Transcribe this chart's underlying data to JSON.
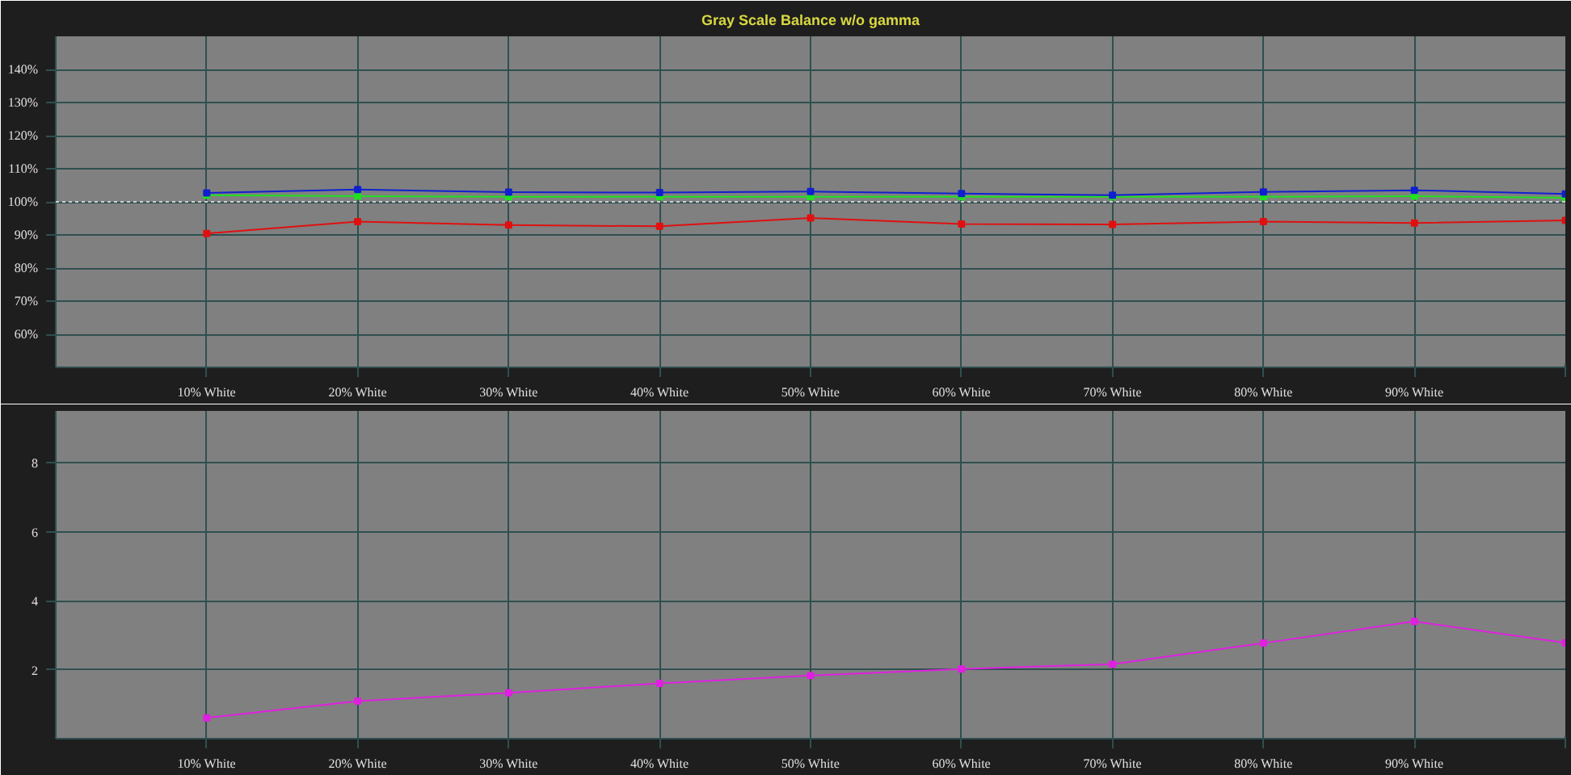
{
  "chart_data": [
    {
      "type": "line",
      "title": "Gray Scale Balance w/o gamma",
      "x": [
        10,
        20,
        30,
        40,
        50,
        60,
        70,
        80,
        90,
        100
      ],
      "xlim": [
        0,
        100
      ],
      "xticks": [
        {
          "value": 10,
          "label": "10% White"
        },
        {
          "value": 20,
          "label": "20% White"
        },
        {
          "value": 30,
          "label": "30% White"
        },
        {
          "value": 40,
          "label": "40% White"
        },
        {
          "value": 50,
          "label": "50% White"
        },
        {
          "value": 60,
          "label": "60% White"
        },
        {
          "value": 70,
          "label": "70% White"
        },
        {
          "value": 80,
          "label": "80% White"
        },
        {
          "value": 90,
          "label": "90% White"
        },
        {
          "value": 100,
          "label": null
        }
      ],
      "ylim": [
        50,
        150
      ],
      "yticks": [
        {
          "value": 60,
          "label": "60%"
        },
        {
          "value": 70,
          "label": "70%"
        },
        {
          "value": 80,
          "label": "80%"
        },
        {
          "value": 90,
          "label": "90%"
        },
        {
          "value": 100,
          "label": "100%"
        },
        {
          "value": 110,
          "label": "110%"
        },
        {
          "value": 120,
          "label": "120%"
        },
        {
          "value": 130,
          "label": "130%"
        },
        {
          "value": 140,
          "label": "140%"
        }
      ],
      "series": [
        {
          "color": "#e01010",
          "values": [
            90.4,
            94,
            93,
            92.6,
            95.1,
            93.3,
            93.2,
            94,
            93.6,
            94.4
          ]
        },
        {
          "color": "#20e020",
          "values": [
            102,
            101.7,
            101.5,
            101.5,
            101.5,
            101.5,
            101.5,
            101.5,
            101.7,
            101.2
          ]
        },
        {
          "color": "#1020d0",
          "values": [
            102.7,
            103.7,
            102.9,
            102.8,
            103.1,
            102.5,
            102,
            103,
            103.5,
            102.4
          ]
        }
      ],
      "ref_lines": [
        {
          "axis": "y",
          "value": 100,
          "color": "#d0d0d0",
          "line_style": "dotted"
        }
      ],
      "marker": "square",
      "grid": true
    },
    {
      "type": "line",
      "x": [
        10,
        20,
        30,
        40,
        50,
        60,
        70,
        80,
        90,
        100
      ],
      "xlim": [
        0,
        100
      ],
      "xticks": [
        {
          "value": 10,
          "label": "10% White"
        },
        {
          "value": 20,
          "label": "20% White"
        },
        {
          "value": 30,
          "label": "30% White"
        },
        {
          "value": 40,
          "label": "40% White"
        },
        {
          "value": 50,
          "label": "50% White"
        },
        {
          "value": 60,
          "label": "60% White"
        },
        {
          "value": 70,
          "label": "70% White"
        },
        {
          "value": 80,
          "label": "80% White"
        },
        {
          "value": 90,
          "label": "90% White"
        },
        {
          "value": 100,
          "label": null
        }
      ],
      "ylim": [
        0,
        9.5
      ],
      "yticks": [
        2,
        4,
        6,
        8
      ],
      "series": [
        {
          "color": "#e020e0",
          "values": [
            0.6,
            1.09,
            1.33,
            1.6,
            1.83,
            2.02,
            2.16,
            2.77,
            3.4,
            2.78
          ]
        }
      ],
      "marker": "square",
      "grid": true
    }
  ]
}
